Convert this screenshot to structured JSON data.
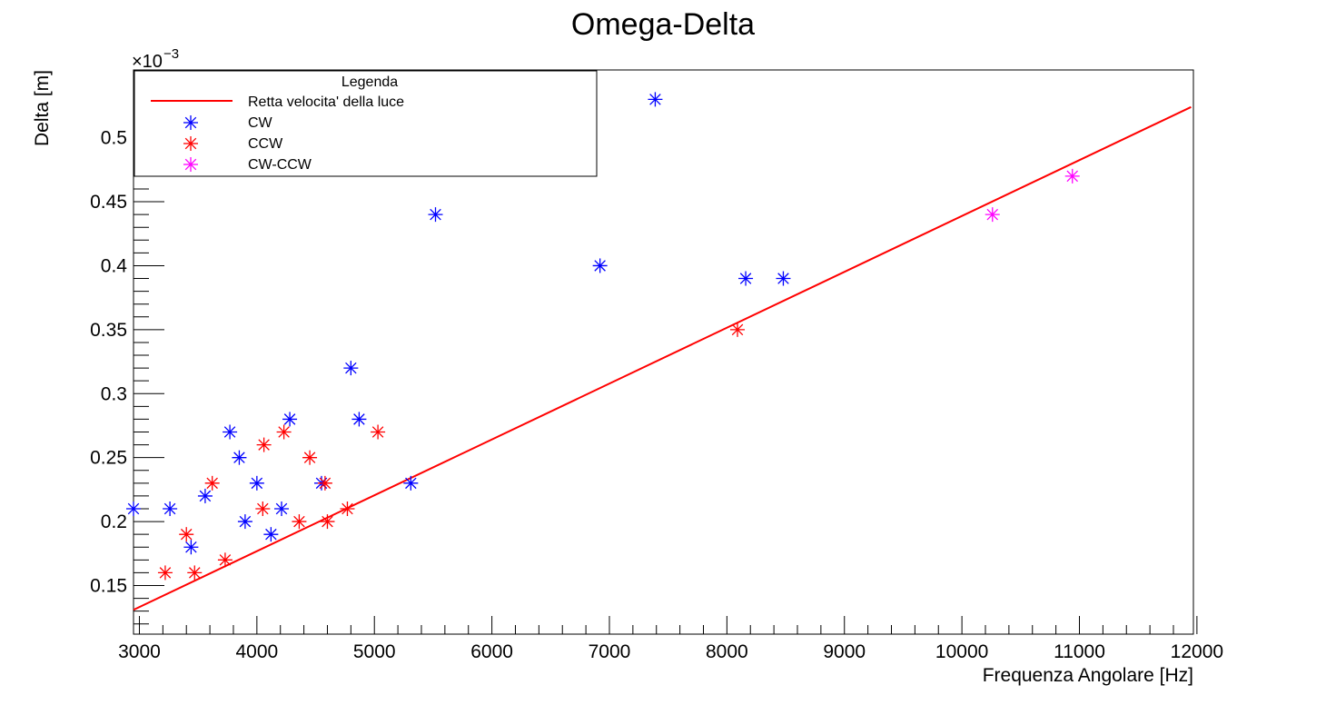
{
  "chart_data": {
    "type": "scatter",
    "title": "Omega-Delta",
    "xlabel": "Frequenza Angolare [Hz]",
    "ylabel": "Delta [m]",
    "y_exponent_label": "×10",
    "y_exponent_power": "−3",
    "xlim": [
      2950,
      11970
    ],
    "ylim": [
      0.112,
      0.553
    ],
    "x_ticks": [
      3000,
      4000,
      5000,
      6000,
      7000,
      8000,
      9000,
      10000,
      11000,
      12000
    ],
    "x_tick_labels": [
      "3000",
      "4000",
      "5000",
      "6000",
      "7000",
      "8000",
      "9000",
      "10000",
      "11000",
      "12000"
    ],
    "y_ticks": [
      0.15,
      0.2,
      0.25,
      0.3,
      0.35,
      0.4,
      0.45,
      0.5
    ],
    "y_tick_labels": [
      "0.15",
      "0.2",
      "0.25",
      "0.3",
      "0.35",
      "0.4",
      "0.45",
      "0.5"
    ],
    "grid": false,
    "legend": {
      "title": "Legenda",
      "placement": "top-left",
      "entries": [
        {
          "label": "Retta velocita' della luce",
          "kind": "line",
          "color": "#ff0000"
        },
        {
          "label": "CW",
          "kind": "marker",
          "color": "#0000ff"
        },
        {
          "label": "CCW",
          "kind": "marker",
          "color": "#ff0000"
        },
        {
          "label": "CW-CCW",
          "kind": "marker",
          "color": "#ff00ff"
        }
      ]
    },
    "line": {
      "name": "Retta velocita' della luce",
      "color": "#ff0000",
      "x": [
        2950,
        11950
      ],
      "y": [
        0.131,
        0.524
      ]
    },
    "series": [
      {
        "name": "CW",
        "color": "#0000ff",
        "marker": "star",
        "points": [
          [
            2950,
            0.21
          ],
          [
            3260,
            0.21
          ],
          [
            3440,
            0.18
          ],
          [
            3560,
            0.22
          ],
          [
            3770,
            0.27
          ],
          [
            3850,
            0.25
          ],
          [
            3900,
            0.2
          ],
          [
            4000,
            0.23
          ],
          [
            4120,
            0.19
          ],
          [
            4210,
            0.21
          ],
          [
            4280,
            0.28
          ],
          [
            4550,
            0.23
          ],
          [
            4800,
            0.32
          ],
          [
            4870,
            0.28
          ],
          [
            5310,
            0.23
          ],
          [
            5520,
            0.44
          ],
          [
            6920,
            0.4
          ],
          [
            7390,
            0.53
          ],
          [
            8160,
            0.39
          ],
          [
            8480,
            0.39
          ]
        ]
      },
      {
        "name": "CCW",
        "color": "#ff0000",
        "marker": "star",
        "points": [
          [
            3220,
            0.16
          ],
          [
            3400,
            0.19
          ],
          [
            3470,
            0.16
          ],
          [
            3620,
            0.23
          ],
          [
            3730,
            0.17
          ],
          [
            4050,
            0.21
          ],
          [
            4060,
            0.26
          ],
          [
            4230,
            0.27
          ],
          [
            4360,
            0.2
          ],
          [
            4450,
            0.25
          ],
          [
            4580,
            0.23
          ],
          [
            4600,
            0.2
          ],
          [
            4770,
            0.21
          ],
          [
            5030,
            0.27
          ],
          [
            8090,
            0.35
          ]
        ]
      },
      {
        "name": "CW-CCW",
        "color": "#ff00ff",
        "marker": "star",
        "points": [
          [
            10260,
            0.44
          ],
          [
            10940,
            0.47
          ]
        ]
      }
    ]
  }
}
